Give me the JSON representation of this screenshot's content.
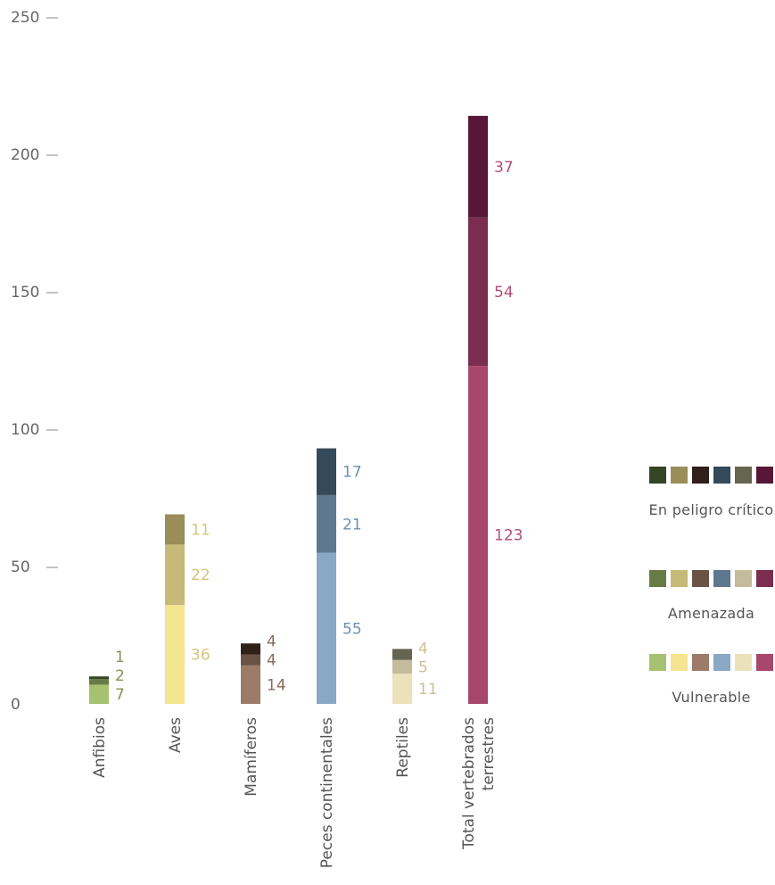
{
  "chart_data": {
    "type": "bar",
    "stacked": true,
    "categories": [
      "Anfibios",
      "Aves",
      "Mamíferos",
      "Peces continentales",
      "Reptiles",
      [
        "Total vertebrados",
        "terrestres"
      ]
    ],
    "ylim": [
      0,
      250
    ],
    "yticks": [
      0,
      50,
      100,
      150,
      200,
      250
    ],
    "series": [
      {
        "name": "Vulnerable",
        "values": [
          7,
          36,
          14,
          55,
          11,
          123
        ]
      },
      {
        "name": "Amenazada",
        "values": [
          2,
          22,
          4,
          21,
          5,
          54
        ]
      },
      {
        "name": "En peligro crítico",
        "values": [
          1,
          11,
          4,
          17,
          4,
          37
        ]
      }
    ],
    "colors": [
      [
        "#a6c170",
        "#f5e490",
        "#9c7b69",
        "#88a8c4",
        "#ebe1bb",
        "#a8476c"
      ],
      [
        "#687a46",
        "#c7b978",
        "#6a5345",
        "#5e7890",
        "#c3bb9b",
        "#7a2d4e"
      ],
      [
        "#344523",
        "#9a8d5a",
        "#2f2018",
        "#34495a",
        "#66654f",
        "#561836"
      ]
    ],
    "label_colors": [
      "#8c8f55",
      "#d4c47c",
      "#8a6b5c",
      "#6c90b4",
      "#cbc193",
      "#b24d77"
    ],
    "legend": [
      {
        "label": "En peligro crítico",
        "colors": [
          "#344523",
          "#9a8d5a",
          "#2f2018",
          "#34495a",
          "#66654f",
          "#561836"
        ]
      },
      {
        "label": "Amenazada",
        "colors": [
          "#687a46",
          "#c7b978",
          "#6a5345",
          "#5e7890",
          "#c3bb9b",
          "#7a2d4e"
        ]
      },
      {
        "label": "Vulnerable",
        "colors": [
          "#a6c170",
          "#f5e490",
          "#9c7b69",
          "#88a8c4",
          "#ebe1bb",
          "#a8476c"
        ]
      }
    ],
    "legend_position": "right",
    "grid": false
  }
}
